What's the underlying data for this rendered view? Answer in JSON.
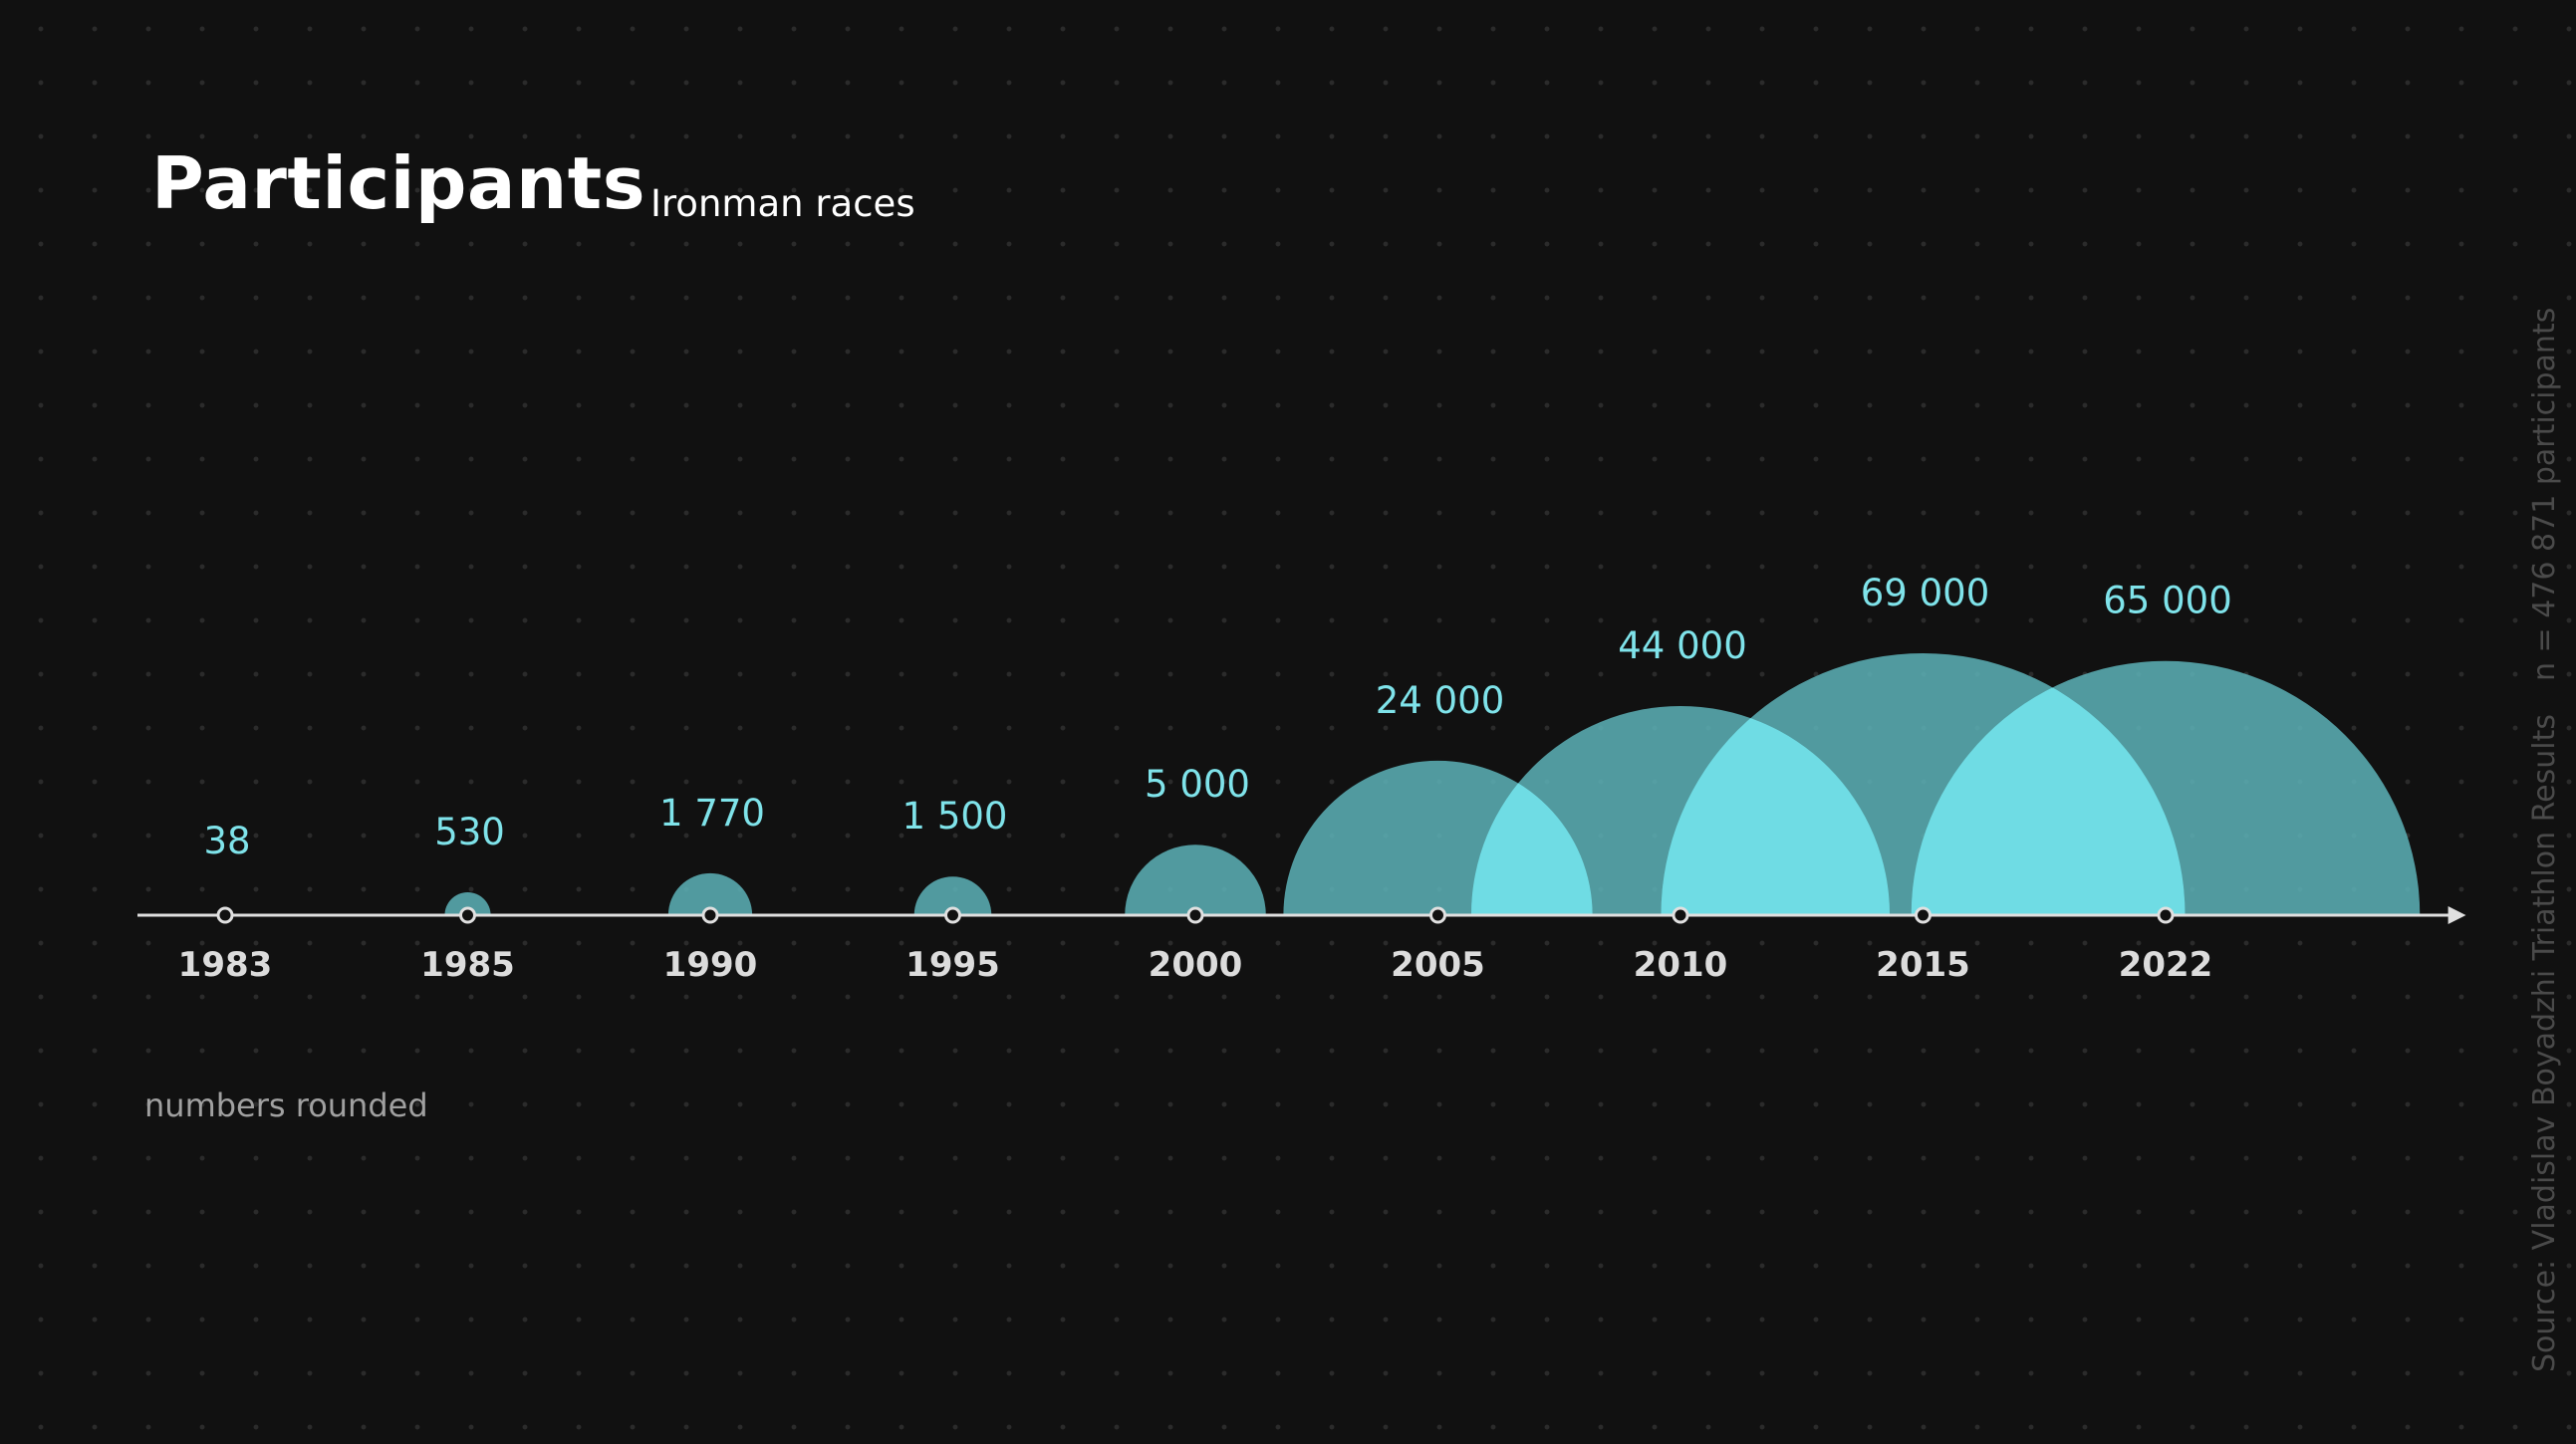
{
  "header": {
    "title": "Participants",
    "subtitle": "Ironman races"
  },
  "footnote": "numbers rounded",
  "side_notes": {
    "sample": "n = 476 871 participants",
    "source": "Source: Vladislav Boyadzhi Triathlon Results"
  },
  "colors": {
    "background": "#111111",
    "bubble": "#5fb8be",
    "bubble_overlap": "#6fdce4",
    "value_label": "#7fe3ea",
    "axis": "#e0e0e0",
    "tick_label": "#dcdcdc"
  },
  "chart_data": {
    "type": "bubble-timeline",
    "title": "Participants",
    "subtitle": "Ironman races",
    "categories": [
      "1983",
      "1985",
      "1990",
      "1995",
      "2000",
      "2005",
      "2010",
      "2015",
      "2022"
    ],
    "values": [
      38,
      530,
      1770,
      1500,
      5000,
      24000,
      44000,
      69000,
      65000
    ],
    "value_labels": [
      "38",
      "530",
      "1 770",
      "1 500",
      "5 000",
      "24 000",
      "44 000",
      "69 000",
      "65 000"
    ],
    "encoding": "half-circle area proportional to participants",
    "grid": false,
    "legend": "none"
  }
}
